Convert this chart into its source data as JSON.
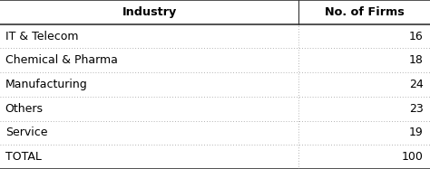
{
  "header": [
    "Industry",
    "No. of Firms"
  ],
  "rows": [
    [
      "IT & Telecom",
      "16"
    ],
    [
      "Chemical & Pharma",
      "18"
    ],
    [
      "Manufacturing",
      "24"
    ],
    [
      "Others",
      "23"
    ],
    [
      "Service",
      "19"
    ],
    [
      "TOTAL",
      "100"
    ]
  ],
  "col_split": 0.695,
  "header_fontsize": 9.2,
  "body_fontsize": 9.0,
  "fig_bg": "#ffffff",
  "text_color": "#000000",
  "border_color": "#333333",
  "dot_color": "#999999",
  "total_row_index": 5,
  "n_header_rows": 1,
  "figw": 4.74,
  "figh": 1.87,
  "dpi": 100
}
